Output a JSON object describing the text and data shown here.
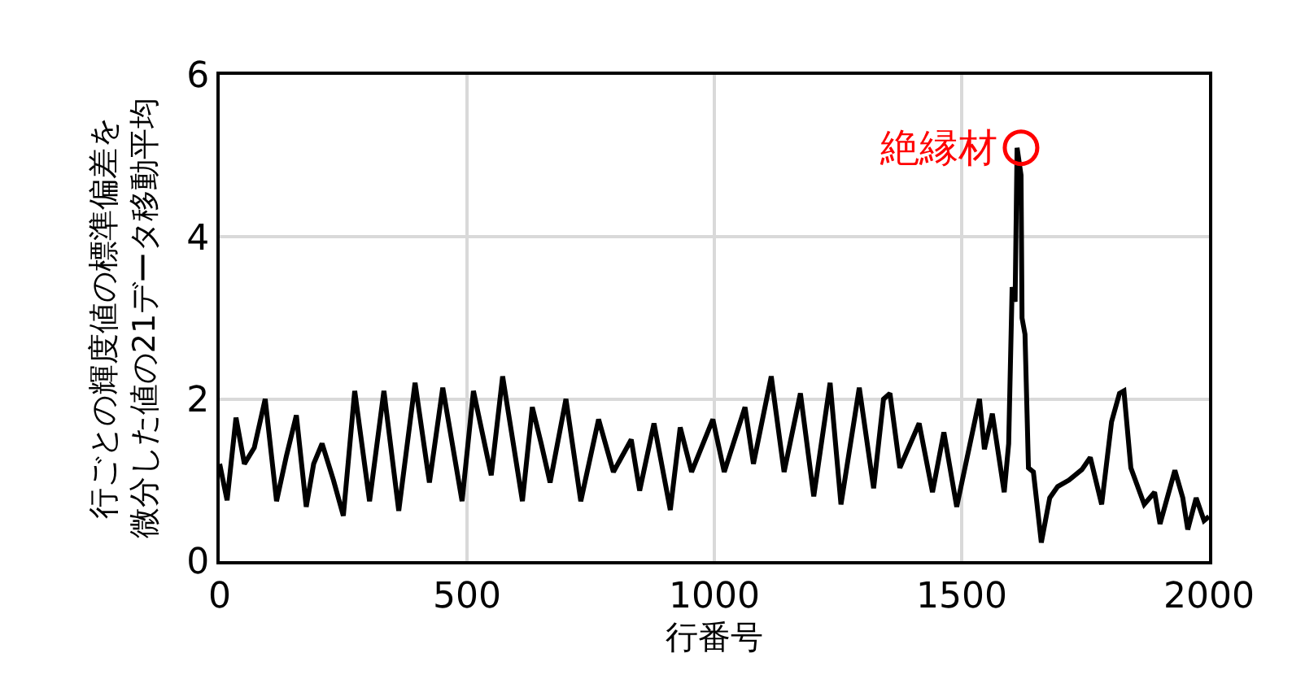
{
  "chart_data": {
    "type": "line",
    "xlabel": "行番号",
    "ylabel": "行ごとの輝度値の標準偏差を微分した値の21データ移動平均",
    "xlim": [
      0,
      2000
    ],
    "xticks": [
      0,
      500,
      1000,
      1500,
      2000
    ],
    "ylim": [
      0,
      6
    ],
    "yticks": [
      0,
      2,
      4,
      6
    ],
    "grid": true,
    "marker": "none",
    "line_style": "solid",
    "annotations": [
      {
        "text": "絶縁材",
        "x": 1620,
        "y": 5.1
      }
    ],
    "series": [
      {
        "color": "#000000",
        "x": [
          0,
          15,
          33,
          50,
          70,
          92,
          115,
          135,
          155,
          175,
          190,
          207,
          230,
          250,
          273,
          303,
          332,
          362,
          395,
          424,
          451,
          490,
          513,
          549,
          572,
          612,
          632,
          650,
          668,
          700,
          730,
          766,
          796,
          832,
          849,
          878,
          911,
          931,
          954,
          997,
          1020,
          1062,
          1079,
          1115,
          1141,
          1174,
          1201,
          1234,
          1256,
          1293,
          1322,
          1342,
          1355,
          1375,
          1414,
          1441,
          1464,
          1490,
          1536,
          1546,
          1562,
          1586,
          1595,
          1602,
          1608,
          1612,
          1620,
          1622,
          1628,
          1635,
          1645,
          1661,
          1678,
          1694,
          1717,
          1743,
          1760,
          1783,
          1803,
          1819,
          1828,
          1842,
          1869,
          1890,
          1901,
          1931,
          1947,
          1957,
          1974,
          1990,
          2000
        ],
        "values": [
          1.2,
          0.75,
          1.77,
          1.2,
          1.4,
          2.0,
          0.74,
          1.3,
          1.8,
          0.67,
          1.2,
          1.45,
          1.0,
          0.56,
          2.1,
          0.74,
          2.1,
          0.62,
          2.2,
          0.97,
          2.14,
          0.74,
          2.1,
          1.06,
          2.28,
          0.74,
          1.9,
          1.45,
          0.97,
          2.0,
          0.74,
          1.75,
          1.1,
          1.5,
          0.87,
          1.7,
          0.63,
          1.65,
          1.1,
          1.75,
          1.1,
          1.9,
          1.2,
          2.28,
          1.1,
          2.07,
          0.8,
          2.2,
          0.7,
          2.14,
          0.9,
          2.0,
          2.07,
          1.15,
          1.7,
          0.85,
          1.59,
          0.67,
          2.0,
          1.38,
          1.82,
          0.85,
          1.45,
          3.38,
          3.2,
          5.1,
          4.76,
          3.0,
          2.8,
          1.15,
          1.1,
          0.23,
          0.78,
          0.92,
          1.0,
          1.13,
          1.28,
          0.7,
          1.72,
          2.07,
          2.1,
          1.15,
          0.7,
          0.85,
          0.46,
          1.12,
          0.78,
          0.39,
          0.78,
          0.5,
          0.55
        ]
      }
    ]
  }
}
